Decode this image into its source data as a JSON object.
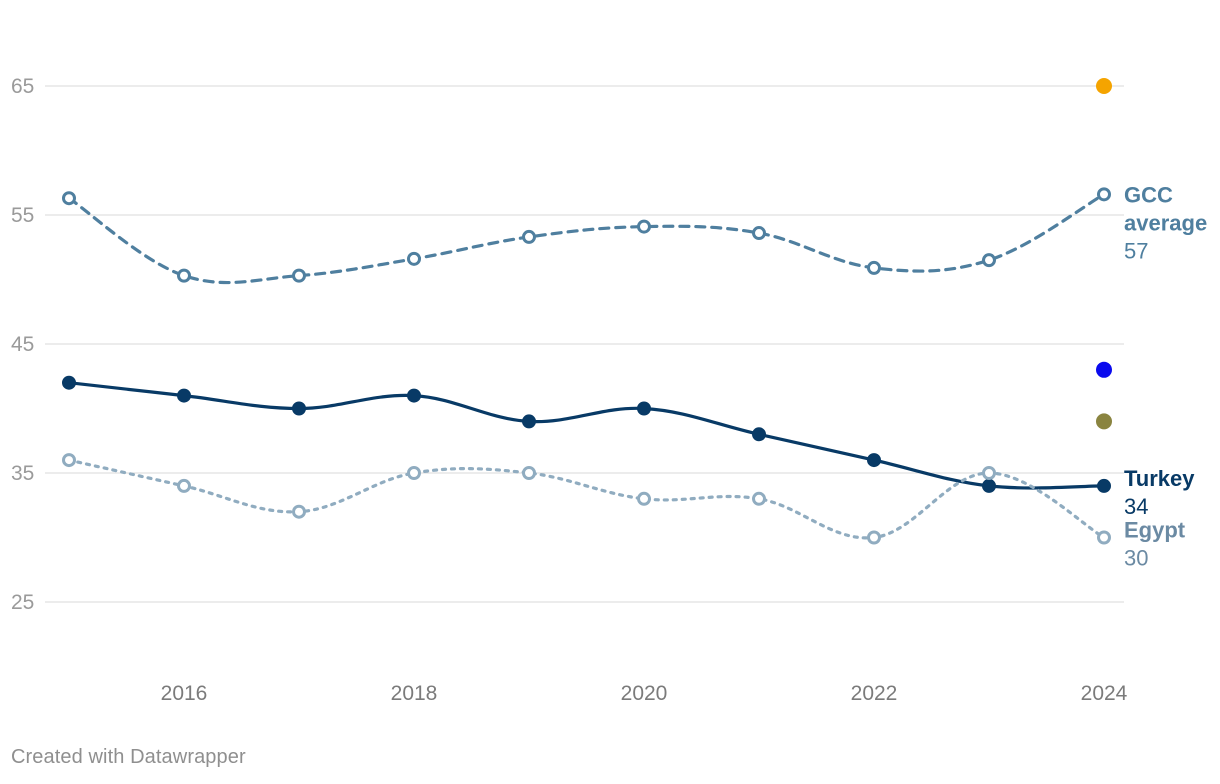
{
  "chart_data": {
    "type": "line",
    "xlim": [
      2015,
      2024
    ],
    "ylim": [
      25,
      65
    ],
    "y_ticks": [
      25,
      35,
      45,
      55,
      65
    ],
    "x_ticks": [
      2016,
      2018,
      2020,
      2022,
      2024
    ],
    "grid": true,
    "x": [
      2015,
      2016,
      2017,
      2018,
      2019,
      2020,
      2021,
      2022,
      2023,
      2024
    ],
    "series": [
      {
        "name": "GCC average",
        "label_lines": [
          "GCC",
          "average"
        ],
        "end_value_label": "57",
        "style": "dashed",
        "marker": "hollow",
        "color": "#4f7f9f",
        "values": [
          56.3,
          50.3,
          50.3,
          51.6,
          53.3,
          54.1,
          53.6,
          50.9,
          51.5,
          56.6
        ]
      },
      {
        "name": "Turkey",
        "label_lines": [
          "Turkey"
        ],
        "end_value_label": "34",
        "style": "solid",
        "marker": "filled",
        "color": "#083a66",
        "values": [
          42,
          41,
          40,
          41,
          39,
          40,
          38,
          36,
          34,
          34
        ]
      },
      {
        "name": "Egypt",
        "label_lines": [
          "Egypt"
        ],
        "end_value_label": "30",
        "style": "dotted",
        "marker": "hollow",
        "color": "#90acc0",
        "label_color": "#6b8aa3",
        "values": [
          36,
          34,
          32,
          35,
          35,
          33,
          33,
          30,
          35,
          30
        ]
      }
    ],
    "extra_points": [
      {
        "x": 2024,
        "y": 65,
        "color": "#f5a400"
      },
      {
        "x": 2024,
        "y": 43,
        "color": "#0a0aee"
      },
      {
        "x": 2024,
        "y": 39,
        "color": "#8a8440"
      }
    ]
  },
  "credit": "Created with Datawrapper"
}
